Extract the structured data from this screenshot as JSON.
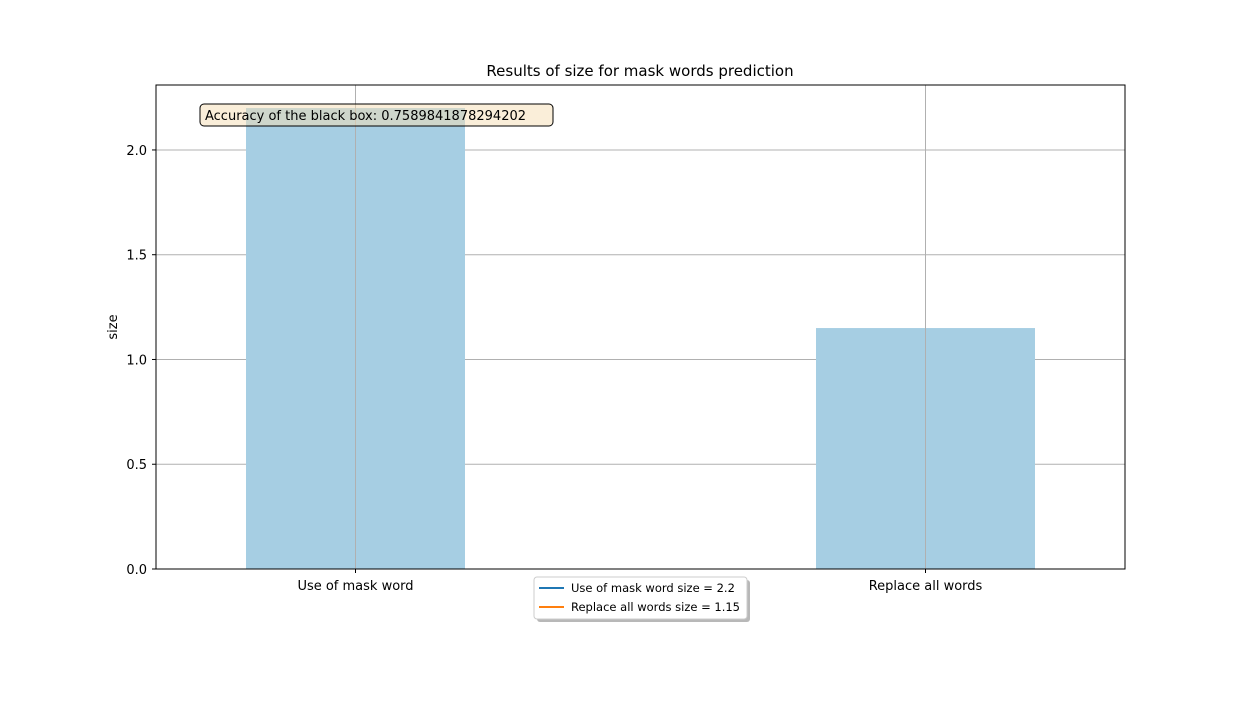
{
  "chart_data": {
    "type": "bar",
    "title": "Results of size for mask words prediction",
    "xlabel": "",
    "ylabel": "size",
    "categories": [
      "Use of mask word",
      "Replace all words"
    ],
    "values": [
      2.2,
      1.15
    ],
    "bar_color": "#a6cee3",
    "ylim": [
      0,
      2.31
    ],
    "yticks": [
      0.0,
      0.5,
      1.0,
      1.5,
      2.0
    ],
    "ytick_labels": [
      "0.0",
      "0.5",
      "1.0",
      "1.5",
      "2.0"
    ],
    "grid": true,
    "annotation": "Accuracy of the black box: 0.7589841878294202",
    "legend": {
      "placement": "bottom-center",
      "entries": [
        {
          "label": "Use of mask word size = 2.2",
          "color": "#1f77b4"
        },
        {
          "label": "Replace all words size = 1.15",
          "color": "#ff7f0e"
        }
      ]
    }
  }
}
